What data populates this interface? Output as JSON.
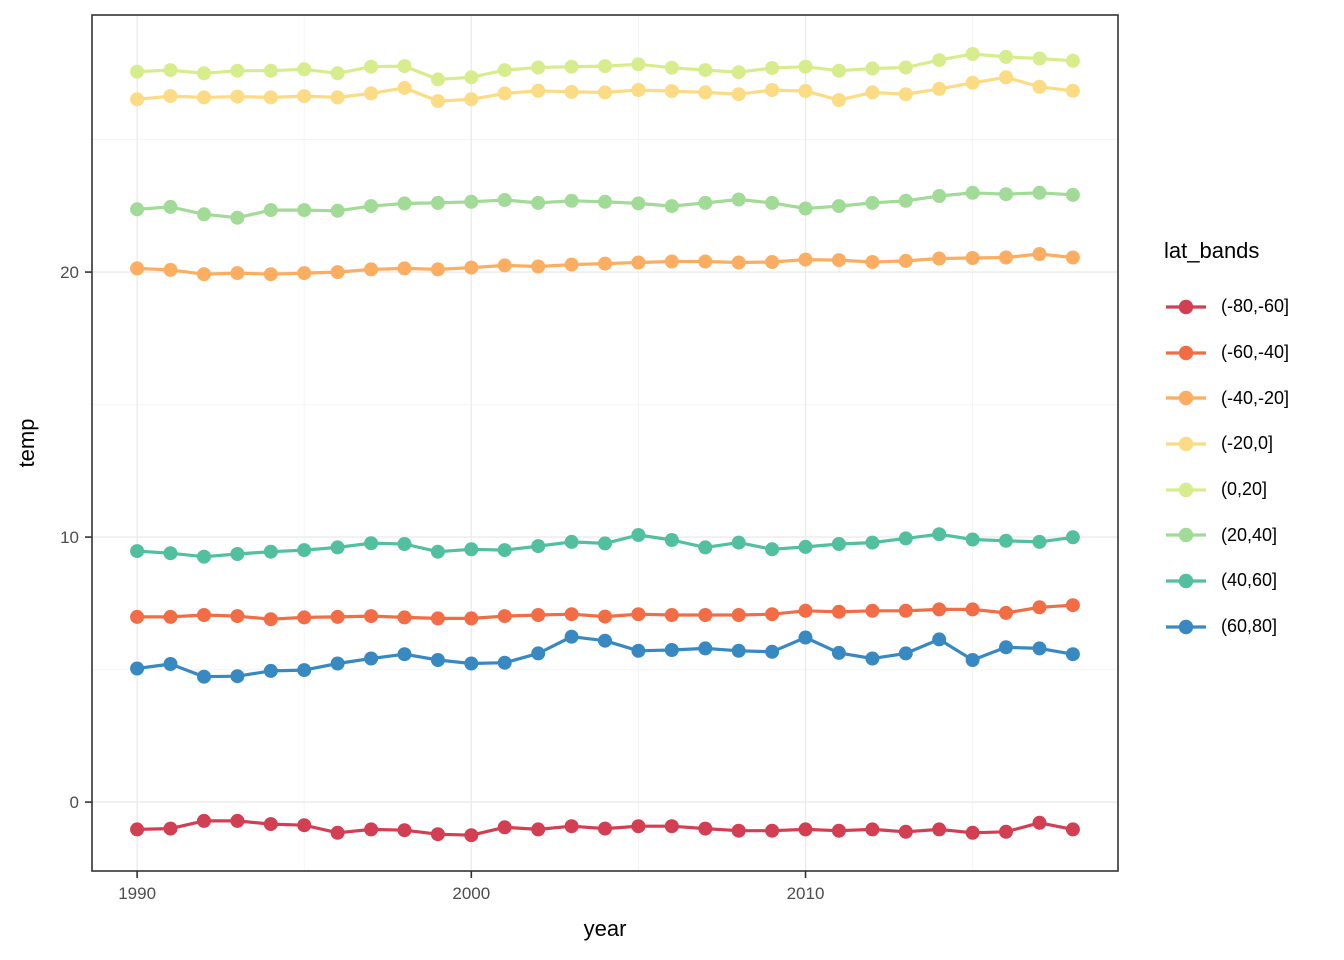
{
  "chart_data": {
    "type": "line",
    "title": "",
    "xlabel": "year",
    "ylabel": "temp",
    "legend_title": "lat_bands",
    "legend_position": "right",
    "grid": true,
    "panel_border_color": "#333333",
    "grid_major_color": "#EBEBEB",
    "grid_minor_color": "#F4F4F4",
    "tick_label_color": "#4D4D4D",
    "xlim": [
      1988.65,
      2019.35
    ],
    "ylim": [
      -2.6,
      29.7
    ],
    "x_ticks": [
      1990,
      2000,
      2010
    ],
    "x_tick_labels": [
      "1990",
      "2000",
      "2010"
    ],
    "x_minor_ticks": [
      1995,
      2005,
      2015
    ],
    "y_ticks": [
      0,
      10,
      20
    ],
    "y_tick_labels": [
      "0",
      "10",
      "20"
    ],
    "y_minor_ticks": [
      5,
      15,
      25
    ],
    "x": [
      1990,
      1991,
      1992,
      1993,
      1994,
      1995,
      1996,
      1997,
      1998,
      1999,
      2000,
      2001,
      2002,
      2003,
      2004,
      2005,
      2006,
      2007,
      2008,
      2009,
      2010,
      2011,
      2012,
      2013,
      2014,
      2015,
      2016,
      2017,
      2018
    ],
    "series": [
      {
        "name": "(-80,-60]",
        "color": "#D23E52",
        "values": [
          -1.03,
          -1.0,
          -0.71,
          -0.71,
          -0.83,
          -0.87,
          -1.16,
          -1.03,
          -1.06,
          -1.21,
          -1.25,
          -0.95,
          -1.03,
          -0.91,
          -1.0,
          -0.91,
          -0.91,
          -1.0,
          -1.08,
          -1.08,
          -1.03,
          -1.08,
          -1.03,
          -1.12,
          -1.03,
          -1.16,
          -1.12,
          -0.78,
          -1.03
        ]
      },
      {
        "name": "(-60,-40]",
        "color": "#F26D45",
        "values": [
          6.99,
          6.99,
          7.06,
          7.02,
          6.9,
          6.97,
          6.99,
          7.02,
          6.97,
          6.93,
          6.93,
          7.02,
          7.06,
          7.09,
          7.0,
          7.09,
          7.06,
          7.06,
          7.06,
          7.09,
          7.22,
          7.18,
          7.22,
          7.22,
          7.27,
          7.27,
          7.14,
          7.35,
          7.43
        ]
      },
      {
        "name": "(-40,-20]",
        "color": "#FBAE61",
        "values": [
          20.14,
          20.08,
          19.92,
          19.96,
          19.92,
          19.96,
          20.0,
          20.1,
          20.14,
          20.1,
          20.17,
          20.25,
          20.21,
          20.28,
          20.32,
          20.36,
          20.4,
          20.4,
          20.36,
          20.38,
          20.47,
          20.45,
          20.38,
          20.42,
          20.51,
          20.53,
          20.55,
          20.68,
          20.55
        ]
      },
      {
        "name": "(-20,0]",
        "color": "#FBDB84",
        "values": [
          26.52,
          26.64,
          26.59,
          26.62,
          26.59,
          26.64,
          26.59,
          26.74,
          26.95,
          26.45,
          26.52,
          26.74,
          26.84,
          26.8,
          26.78,
          26.87,
          26.83,
          26.78,
          26.71,
          26.87,
          26.83,
          26.49,
          26.78,
          26.71,
          26.91,
          27.14,
          27.35,
          26.99,
          26.84
        ]
      },
      {
        "name": "(0,20]",
        "color": "#D7ED8D",
        "values": [
          27.56,
          27.62,
          27.5,
          27.6,
          27.6,
          27.65,
          27.5,
          27.75,
          27.77,
          27.27,
          27.35,
          27.62,
          27.72,
          27.75,
          27.77,
          27.84,
          27.71,
          27.62,
          27.54,
          27.7,
          27.75,
          27.6,
          27.68,
          27.72,
          28.0,
          28.23,
          28.12,
          28.06,
          27.97
        ]
      },
      {
        "name": "(20,40]",
        "color": "#A2DA98",
        "values": [
          22.37,
          22.46,
          22.18,
          22.05,
          22.34,
          22.34,
          22.31,
          22.49,
          22.59,
          22.61,
          22.65,
          22.72,
          22.61,
          22.69,
          22.65,
          22.59,
          22.49,
          22.61,
          22.74,
          22.61,
          22.4,
          22.49,
          22.61,
          22.69,
          22.87,
          22.99,
          22.94,
          22.99,
          22.91
        ]
      },
      {
        "name": "(40,60]",
        "color": "#52BF9F",
        "values": [
          9.47,
          9.39,
          9.26,
          9.36,
          9.45,
          9.51,
          9.61,
          9.77,
          9.74,
          9.45,
          9.54,
          9.51,
          9.66,
          9.82,
          9.76,
          10.08,
          9.89,
          9.61,
          9.79,
          9.54,
          9.63,
          9.74,
          9.79,
          9.95,
          10.11,
          9.91,
          9.86,
          9.82,
          9.99
        ]
      },
      {
        "name": "(60,80]",
        "color": "#3889C1",
        "values": [
          5.04,
          5.21,
          4.73,
          4.75,
          4.95,
          4.98,
          5.23,
          5.42,
          5.58,
          5.36,
          5.23,
          5.26,
          5.61,
          6.24,
          6.09,
          5.71,
          5.74,
          5.8,
          5.71,
          5.67,
          6.21,
          5.63,
          5.42,
          5.61,
          6.14,
          5.36,
          5.84,
          5.8,
          5.58
        ]
      }
    ]
  }
}
